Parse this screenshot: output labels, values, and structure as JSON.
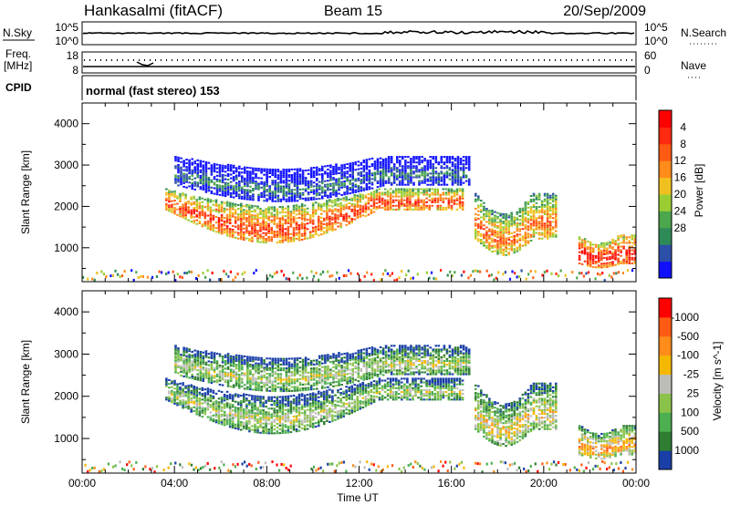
{
  "header": {
    "station": "Hankasalmi (fitACF)",
    "beam": "Beam 15",
    "date": "20/Sep/2009"
  },
  "nsky_panel": {
    "left_label": "N.Sky",
    "right_label": "N.Search",
    "left_ticks": [
      "10^5",
      "10^0"
    ],
    "right_ticks": [
      "10^5",
      "10^0"
    ]
  },
  "freq_panel": {
    "label_line1": "Freq.",
    "label_line2": "[MHz]",
    "left_ticks": [
      "18",
      "8"
    ],
    "right_label": "Nave",
    "right_ticks": [
      "60",
      "0"
    ]
  },
  "cpid_panel": {
    "label": "CPID",
    "mode_text": "normal (fast stereo) 153"
  },
  "chart_data": [
    {
      "type": "heatmap",
      "title": "",
      "ylabel": "Slant Range [km]",
      "ylim": [
        180,
        4500
      ],
      "yticks": [
        "1000",
        "2000",
        "3000",
        "4000"
      ],
      "x_range_hours": [
        0,
        24
      ],
      "colorbar": {
        "label": "Power [dB]",
        "ticks": [
          "4",
          "8",
          "12",
          "16",
          "20",
          "24",
          "28"
        ],
        "colors": [
          "#1010ff",
          "#2c4fa8",
          "#2e8b57",
          "#4ca64c",
          "#9acd32",
          "#f0c020",
          "#ff8c1a",
          "#ff5a14",
          "#ff2a10",
          "#ff0000"
        ]
      },
      "echo_regions": [
        {
          "t0": 3.6,
          "t1": 16.5,
          "r_lo_start": 1900,
          "r_lo_mid": 1100,
          "r_hi_start": 2400,
          "r_hi_mid": 2000,
          "level_core": 8
        },
        {
          "t0": 4.0,
          "t1": 16.8,
          "r_lo_start": 2500,
          "r_lo_mid": 2100,
          "r_hi_start": 3200,
          "r_hi_mid": 2900,
          "level_core": 2
        },
        {
          "t0": 17.0,
          "t1": 20.5,
          "r_lo_start": 1200,
          "r_lo_mid": 800,
          "r_hi_start": 2300,
          "r_hi_mid": 1800,
          "level_core": 7
        },
        {
          "t0": 21.5,
          "t1": 24.0,
          "r_lo_start": 600,
          "r_lo_mid": 500,
          "r_hi_start": 1300,
          "r_hi_mid": 1100,
          "level_core": 9
        }
      ]
    },
    {
      "type": "heatmap",
      "title": "",
      "ylabel": "Slant Range [km]",
      "ylim": [
        180,
        4500
      ],
      "yticks": [
        "1000",
        "2000",
        "3000",
        "4000"
      ],
      "xlabel": "Time UT",
      "xticks": [
        "00:00",
        "04:00",
        "08:00",
        "12:00",
        "16:00",
        "20:00",
        "00:00"
      ],
      "colorbar": {
        "label": "Velocity [m s^-1]",
        "ticks": [
          "1000",
          "500",
          "100",
          "25",
          "-25",
          "-100",
          "-500",
          "-1000"
        ],
        "colors": [
          "#1a3fa8",
          "#2e7d32",
          "#4caf50",
          "#8bc34a",
          "#bdbdb8",
          "#f5b800",
          "#ff8c1a",
          "#ff5a14",
          "#ff0000"
        ]
      },
      "echo_regions": [
        {
          "t0": 3.6,
          "t1": 16.5,
          "r_lo_start": 1900,
          "r_lo_mid": 1100,
          "r_hi_start": 2400,
          "r_hi_mid": 2000,
          "level_core": 4
        },
        {
          "t0": 4.0,
          "t1": 16.8,
          "r_lo_start": 2500,
          "r_lo_mid": 2100,
          "r_hi_start": 3200,
          "r_hi_mid": 2900,
          "level_core": 4
        },
        {
          "t0": 17.0,
          "t1": 20.5,
          "r_lo_start": 1200,
          "r_lo_mid": 800,
          "r_hi_start": 2300,
          "r_hi_mid": 1800,
          "level_core": 5
        },
        {
          "t0": 21.5,
          "t1": 24.0,
          "r_lo_start": 600,
          "r_lo_mid": 500,
          "r_hi_start": 1300,
          "r_hi_mid": 1100,
          "level_core": 6
        }
      ]
    }
  ]
}
